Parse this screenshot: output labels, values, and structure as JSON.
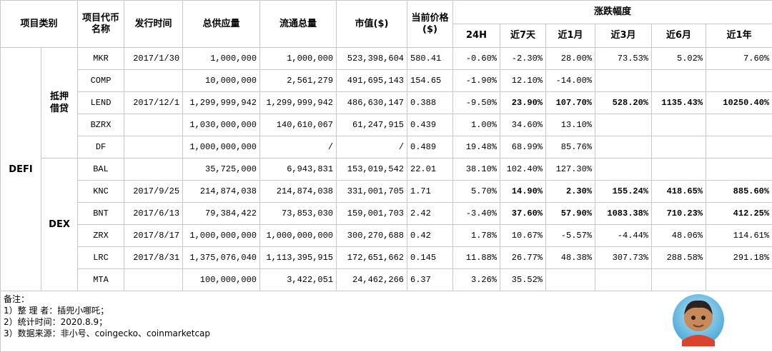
{
  "table": {
    "header": [
      "项目类别",
      "项目代币名称",
      "发行时间",
      "总供应量",
      "流通总量",
      "市值($)",
      "当前价格($)"
    ],
    "change_header": "涨跌幅度",
    "change_periods": [
      "24H",
      "近7天",
      "近1月",
      "近3月",
      "近6月",
      "近1年"
    ],
    "category": "DEFI",
    "groups": [
      {
        "name": "抵押借贷",
        "rows": [
          [
            "MKR",
            "2017/1/30",
            "1,000,000",
            "1,000,000",
            "523,398,604",
            "580.41",
            "-0.60%",
            "-2.30%",
            "28.00%",
            "73.53%",
            "5.02%",
            "7.60%"
          ],
          [
            "COMP",
            null,
            "10,000,000",
            "2,561,279",
            "491,695,143",
            "154.65",
            "-1.90%",
            "12.10%",
            "-14.00%",
            null,
            null,
            null
          ],
          [
            "LEND",
            "2017/12/1",
            "1,299,999,942",
            "1,299,999,942",
            "486,630,147",
            "0.388",
            "-9.50%",
            "23.90%",
            "107.70%",
            "528.20%",
            "1135.43%",
            "10250.40%"
          ],
          [
            "BZRX",
            null,
            "1,030,000,000",
            "140,610,067",
            "61,247,915",
            "0.439",
            "1.00%",
            "34.60%",
            "13.10%",
            null,
            null,
            null
          ],
          [
            "DF",
            null,
            "1,000,000,000",
            "/",
            "/",
            "0.489",
            "19.48%",
            "68.99%",
            "85.76%",
            null,
            null,
            null
          ]
        ]
      },
      {
        "name": "DEX",
        "rows": [
          [
            "BAL",
            null,
            "35,725,000",
            "6,943,831",
            "153,019,542",
            "22.01",
            "38.10%",
            "102.40%",
            "127.30%",
            null,
            null,
            null
          ],
          [
            "KNC",
            "2017/9/25",
            "214,874,038",
            "214,874,038",
            "331,001,705",
            "1.71",
            "5.70%",
            "14.90%",
            "2.30%",
            "155.24%",
            "418.65%",
            "885.60%"
          ],
          [
            "BNT",
            "2017/6/13",
            "79,384,422",
            "73,853,030",
            "159,001,703",
            "2.42",
            "-3.40%",
            "37.60%",
            "57.90%",
            "1083.38%",
            "710.23%",
            "412.25%"
          ],
          [
            "ZRX",
            "2017/8/17",
            "1,000,000,000",
            "1,000,000,000",
            "300,270,688",
            "0.42",
            "1.78%",
            "10.67%",
            "-5.57%",
            "-4.44%",
            "48.06%",
            "114.61%"
          ],
          [
            "LRC",
            "2017/8/31",
            "1,375,076,040",
            "1,113,395,915",
            "172,651,662",
            "0.145",
            "11.88%",
            "26.77%",
            "48.38%",
            "307.73%",
            "288.58%",
            "291.18%"
          ],
          [
            "MTA",
            null,
            "100,000,000",
            "3,422,051",
            "24,462,266",
            "6.37",
            "3.26%",
            "35.52%",
            null,
            null,
            null,
            null
          ]
        ]
      }
    ]
  },
  "notes": [
    "备注：",
    "1）整 理 者：插兜小哪吒；",
    "2）统计时间：2020.8.9；",
    "3）数据来源：非小号、coingecko、coinmarketcap"
  ]
}
